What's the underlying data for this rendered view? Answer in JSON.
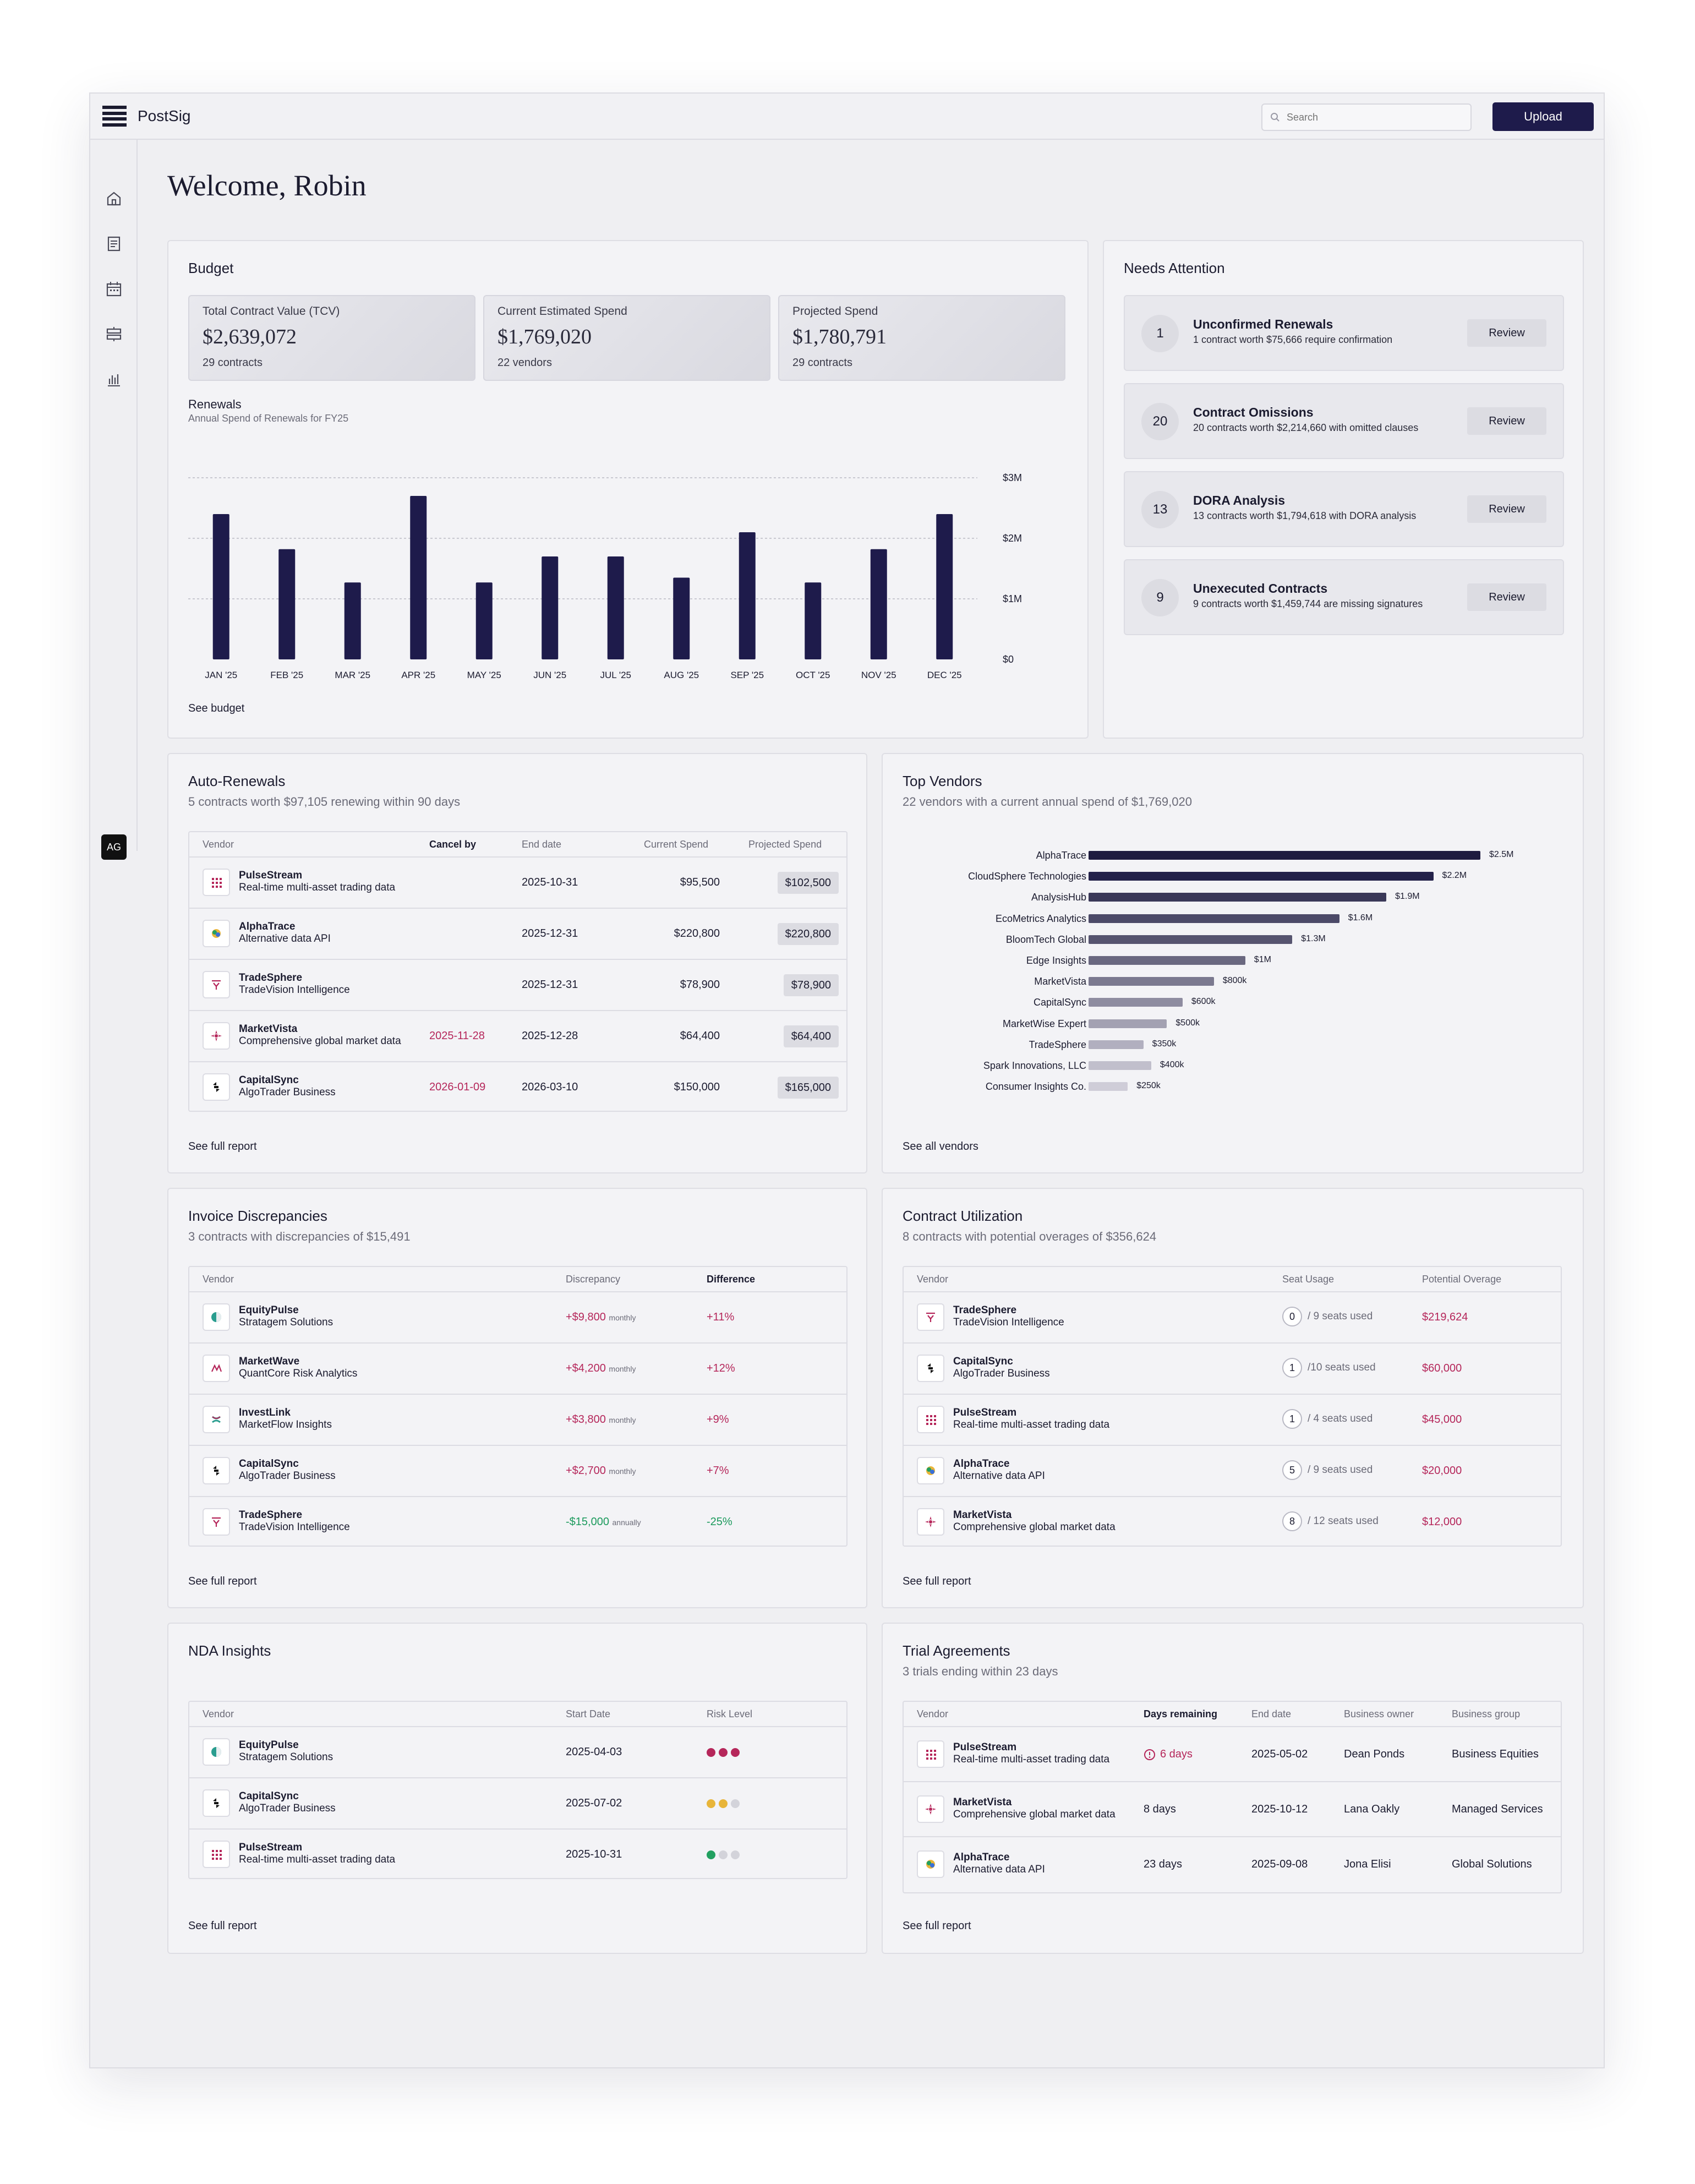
{
  "app": {
    "name": "PostSig",
    "search_placeholder": "Search",
    "upload_label": "Upload",
    "avatar_initials": "AG",
    "welcome": "Welcome, Robin"
  },
  "budget": {
    "title": "Budget",
    "stats": [
      {
        "label": "Total Contract Value (TCV)",
        "value": "$2,639,072",
        "count": "29 contracts"
      },
      {
        "label": "Current Estimated Spend",
        "value": "$1,769,020",
        "count": "22 vendors"
      },
      {
        "label": "Projected Spend",
        "value": "$1,780,791",
        "count": "29 contracts"
      }
    ],
    "see_label": "See budget"
  },
  "chart_data": {
    "type": "bar",
    "title": "Renewals",
    "subtitle": "Annual Spend of Renewals for FY25",
    "categories": [
      "JAN '25",
      "FEB '25",
      "MAR '25",
      "APR '25",
      "MAY '25",
      "JUN '25",
      "JUL '25",
      "AUG '25",
      "SEP '25",
      "OCT '25",
      "NOV '25",
      "DEC '25"
    ],
    "values": [
      2400000,
      1820000,
      1270000,
      2700000,
      1270000,
      1700000,
      1700000,
      1350000,
      2100000,
      1270000,
      1820000,
      2400000
    ],
    "y_ticks": [
      "$3M",
      "$2M",
      "$1M",
      "$0"
    ],
    "ylim": [
      0,
      3000000
    ],
    "grid": true,
    "color": "#1e1b4b"
  },
  "attention": {
    "title": "Needs Attention",
    "items": [
      {
        "count": "1",
        "title": "Unconfirmed Renewals",
        "desc": "1 contract worth $75,666 require confirmation",
        "action": "Review"
      },
      {
        "count": "20",
        "title": "Contract Omissions",
        "desc": "20 contracts worth $2,214,660 with omitted clauses",
        "action": "Review"
      },
      {
        "count": "13",
        "title": "DORA Analysis",
        "desc": "13 contracts worth $1,794,618 with DORA analysis",
        "action": "Review"
      },
      {
        "count": "9",
        "title": "Unexecuted Contracts",
        "desc": "9 contracts worth $1,459,744 are missing signatures",
        "action": "Review"
      }
    ]
  },
  "auto_renewals": {
    "title": "Auto-Renewals",
    "subtitle": "5 contracts worth $97,105 renewing within 90 days",
    "headers": {
      "vendor": "Vendor",
      "cancel": "Cancel by",
      "end": "End date",
      "current": "Current Spend",
      "projected": "Projected Spend"
    },
    "rows": [
      {
        "name": "PulseStream",
        "desc": "Real-time multi-asset trading data",
        "icon": "pulse",
        "cancel": "",
        "end": "2025-10-31",
        "current": "$95,500",
        "projected": "$102,500"
      },
      {
        "name": "AlphaTrace",
        "desc": "Alternative data API",
        "icon": "alpha",
        "cancel": "",
        "end": "2025-12-31",
        "current": "$220,800",
        "projected": "$220,800"
      },
      {
        "name": "TradeSphere",
        "desc": "TradeVision Intelligence",
        "icon": "trade",
        "cancel": "",
        "end": "2025-12-31",
        "current": "$78,900",
        "projected": "$78,900"
      },
      {
        "name": "MarketVista",
        "desc": "Comprehensive global market data",
        "icon": "vista",
        "cancel": "2025-11-28",
        "end": "2025-12-28",
        "current": "$64,400",
        "projected": "$64,400"
      },
      {
        "name": "CapitalSync",
        "desc": "AlgoTrader Business",
        "icon": "capital",
        "cancel": "2026-01-09",
        "end": "2026-03-10",
        "current": "$150,000",
        "projected": "$165,000"
      }
    ],
    "see_label": "See full report"
  },
  "top_vendors": {
    "title": "Top Vendors",
    "subtitle": "22 vendors with a current annual spend of $1,769,020",
    "vendors": [
      {
        "name": "AlphaTrace",
        "value": 2500000,
        "label": "$2.5M",
        "color": "#1e1b3f"
      },
      {
        "name": "CloudSphere Technologies",
        "value": 2200000,
        "label": "$2.2M",
        "color": "#24224a"
      },
      {
        "name": "AnalysisHub",
        "value": 1900000,
        "label": "$1.9M",
        "color": "#3a3858"
      },
      {
        "name": "EcoMetrics Analytics",
        "value": 1600000,
        "label": "$1.6M",
        "color": "#4c4a68"
      },
      {
        "name": "BloomTech Global",
        "value": 1300000,
        "label": "$1.3M",
        "color": "#56546f"
      },
      {
        "name": "Edge Insights",
        "value": 1000000,
        "label": "$1M",
        "color": "#6a6880"
      },
      {
        "name": "MarketVista",
        "value": 800000,
        "label": "$800k",
        "color": "#7b798f"
      },
      {
        "name": "CapitalSync",
        "value": 600000,
        "label": "$600k",
        "color": "#8e8ca0"
      },
      {
        "name": "MarketWise Expert",
        "value": 500000,
        "label": "$500k",
        "color": "#a3a1b2"
      },
      {
        "name": "TradeSphere",
        "value": 350000,
        "label": "$350k",
        "color": "#b1afbf"
      },
      {
        "name": "Spark Innovations, LLC",
        "value": 400000,
        "label": "$400k",
        "color": "#c1bfcc"
      },
      {
        "name": "Consumer Insights Co.",
        "value": 250000,
        "label": "$250k",
        "color": "#cfcdd8"
      }
    ],
    "see_label": "See all vendors"
  },
  "invoice": {
    "title": "Invoice Discrepancies",
    "subtitle": "3 contracts with discrepancies of $15,491",
    "headers": {
      "vendor": "Vendor",
      "discrepancy": "Discrepancy",
      "difference": "Difference"
    },
    "rows": [
      {
        "name": "EquityPulse",
        "desc": "Stratagem Solutions",
        "icon": "equity",
        "amount": "+$9,800",
        "period": "monthly",
        "diff": "+11%",
        "tone": "red"
      },
      {
        "name": "MarketWave",
        "desc": "QuantCore Risk Analytics",
        "icon": "wave",
        "amount": "+$4,200",
        "period": "monthly",
        "diff": "+12%",
        "tone": "red"
      },
      {
        "name": "InvestLink",
        "desc": "MarketFlow Insights",
        "icon": "invest",
        "amount": "+$3,800",
        "period": "monthly",
        "diff": "+9%",
        "tone": "red"
      },
      {
        "name": "CapitalSync",
        "desc": "AlgoTrader Business",
        "icon": "capital",
        "amount": "+$2,700",
        "period": "monthly",
        "diff": "+7%",
        "tone": "red"
      },
      {
        "name": "TradeSphere",
        "desc": "TradeVision Intelligence",
        "icon": "trade",
        "amount": "-$15,000",
        "period": "annually",
        "diff": "-25%",
        "tone": "green"
      }
    ],
    "see_label": "See full report"
  },
  "utilization": {
    "title": "Contract Utilization",
    "subtitle": "8 contracts with potential overages of $356,624",
    "headers": {
      "vendor": "Vendor",
      "seat": "Seat Usage",
      "overage": "Potential Overage"
    },
    "rows": [
      {
        "name": "TradeSphere",
        "desc": "TradeVision Intelligence",
        "icon": "trade",
        "used": "0",
        "seats": "/ 9 seats used",
        "overage": "$219,624"
      },
      {
        "name": "CapitalSync",
        "desc": "AlgoTrader Business",
        "icon": "capital",
        "used": "1",
        "seats": "/10 seats used",
        "overage": "$60,000"
      },
      {
        "name": "PulseStream",
        "desc": "Real-time multi-asset trading data",
        "icon": "pulse",
        "used": "1",
        "seats": "/ 4 seats used",
        "overage": "$45,000"
      },
      {
        "name": "AlphaTrace",
        "desc": "Alternative data API",
        "icon": "alpha",
        "used": "5",
        "seats": "/ 9 seats used",
        "overage": "$20,000"
      },
      {
        "name": "MarketVista",
        "desc": "Comprehensive global market data",
        "icon": "vista",
        "used": "8",
        "seats": "/ 12 seats used",
        "overage": "$12,000"
      }
    ],
    "see_label": "See full report"
  },
  "nda": {
    "title": "NDA Insights",
    "headers": {
      "vendor": "Vendor",
      "start": "Start Date",
      "risk": "Risk Level"
    },
    "rows": [
      {
        "name": "EquityPulse",
        "desc": "Stratagem Solutions",
        "icon": "equity",
        "start": "2025-04-03",
        "risk": [
          "#b5265a",
          "#b5265a",
          "#b5265a"
        ]
      },
      {
        "name": "CapitalSync",
        "desc": "AlgoTrader Business",
        "icon": "capital",
        "start": "2025-07-02",
        "risk": [
          "#e8b53a",
          "#e8b53a",
          "#d3d3da"
        ]
      },
      {
        "name": "PulseStream",
        "desc": "Real-time multi-asset trading data",
        "icon": "pulse",
        "start": "2025-10-31",
        "risk": [
          "#22a060",
          "#d3d3da",
          "#d3d3da"
        ]
      }
    ],
    "see_label": "See full report"
  },
  "trials": {
    "title": "Trial Agreements",
    "subtitle": "3 trials ending within 23 days",
    "headers": {
      "vendor": "Vendor",
      "days": "Days remaining",
      "end": "End date",
      "owner": "Business owner",
      "group": "Business group"
    },
    "rows": [
      {
        "name": "PulseStream",
        "desc": "Real-time multi-asset trading data",
        "icon": "pulse",
        "days": "6 days",
        "urgent": true,
        "end": "2025-05-02",
        "owner": "Dean Ponds",
        "group": "Business Equities"
      },
      {
        "name": "MarketVista",
        "desc": "Comprehensive global market data",
        "icon": "vista",
        "days": "8 days",
        "urgent": false,
        "end": "2025-10-12",
        "owner": "Lana Oakly",
        "group": "Managed Services"
      },
      {
        "name": "AlphaTrace",
        "desc": "Alternative data API",
        "icon": "alpha",
        "days": "23 days",
        "urgent": false,
        "end": "2025-09-08",
        "owner": "Jona Elisi",
        "group": "Global Solutions"
      }
    ],
    "see_label": "See full report"
  }
}
